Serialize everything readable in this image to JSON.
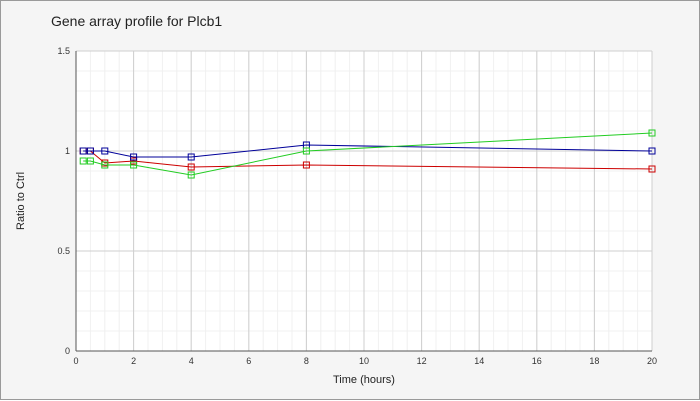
{
  "chart_data": {
    "type": "line",
    "title": "Gene array profile for Plcb1",
    "xlabel": "Time (hours)",
    "ylabel": "Ratio to Ctrl",
    "xlim": [
      0,
      20
    ],
    "ylim": [
      0,
      1.5
    ],
    "x_ticks": [
      "0",
      "2",
      "4",
      "6",
      "8",
      "10",
      "12",
      "14",
      "16",
      "18",
      "20"
    ],
    "y_ticks": [
      "0",
      "0.5",
      "1",
      "1.5"
    ],
    "grid": true,
    "series": [
      {
        "color": "#cc0000",
        "x": [
          0.25,
          0.5,
          1,
          2,
          4,
          8,
          20
        ],
        "values": [
          1.0,
          1.0,
          0.94,
          0.95,
          0.92,
          0.93,
          0.91
        ]
      },
      {
        "color": "#000099",
        "x": [
          0.25,
          0.5,
          1,
          2,
          4,
          8,
          20
        ],
        "values": [
          1.0,
          1.0,
          1.0,
          0.97,
          0.97,
          1.03,
          1.0
        ]
      },
      {
        "color": "#22cc22",
        "x": [
          0.25,
          0.5,
          1,
          2,
          4,
          8,
          20
        ],
        "values": [
          0.95,
          0.95,
          0.93,
          0.93,
          0.88,
          1.0,
          1.09
        ]
      }
    ]
  }
}
